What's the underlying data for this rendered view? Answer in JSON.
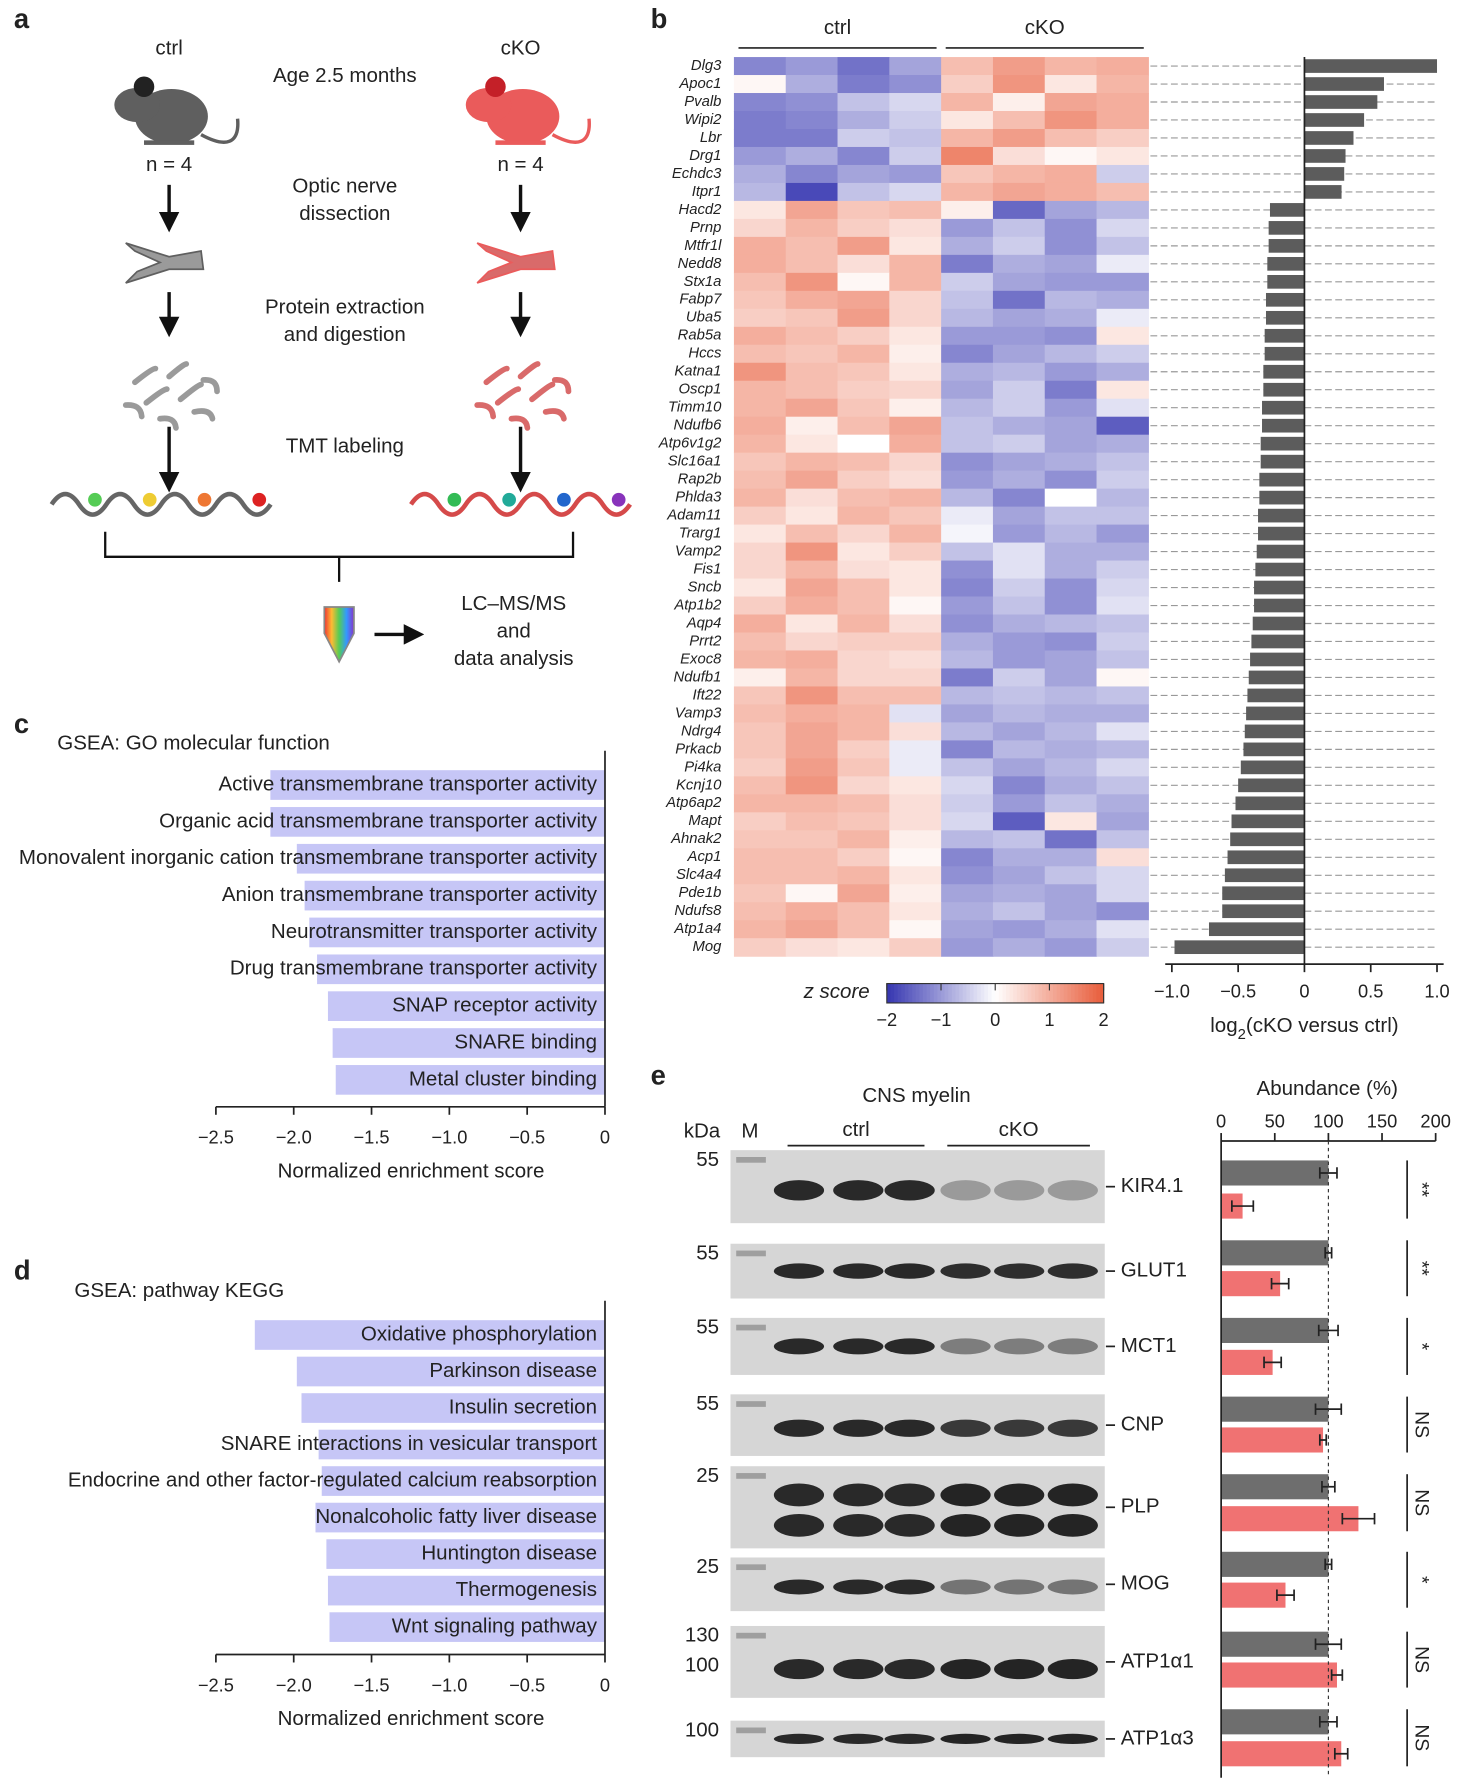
{
  "panel_labels": [
    "a",
    "b",
    "c",
    "d",
    "e"
  ],
  "diagram": {
    "groups": [
      {
        "label": "ctrl",
        "n": "n = 4"
      },
      {
        "label": "cKO",
        "n": "n = 4"
      }
    ],
    "steps": [
      [
        "Age 2.5 months"
      ],
      [
        "Optic nerve",
        "dissection"
      ],
      [
        "Protein extraction",
        "and digestion"
      ],
      [
        "TMT labeling"
      ]
    ],
    "output": [
      "LC–MS/MS",
      "and",
      "data analysis"
    ]
  },
  "chart_data": [
    {
      "type": "heatmap",
      "groups": [
        "ctrl",
        "cKO"
      ],
      "rows": [
        "Dlg3",
        "Apoc1",
        "Pvalb",
        "Wipi2",
        "Lbr",
        "Drg1",
        "Echdc3",
        "Itpr1",
        "Hacd2",
        "Prnp",
        "Mtfr1l",
        "Nedd8",
        "Stx1a",
        "Fabp7",
        "Uba5",
        "Rab5a",
        "Hccs",
        "Katna1",
        "Oscp1",
        "Timm10",
        "Ndufb6",
        "Atp6v1g2",
        "Slc16a1",
        "Rap2b",
        "Phlda3",
        "Adam11",
        "Trarg1",
        "Vamp2",
        "Fis1",
        "Sncb",
        "Atp1b2",
        "Aqp4",
        "Prrt2",
        "Exoc8",
        "Ndufb1",
        "Ift22",
        "Vamp3",
        "Ndrg4",
        "Prkacb",
        "Pi4ka",
        "Kcnj10",
        "Atp6ap2",
        "Mapt",
        "Ahnak2",
        "Acp1",
        "Slc4a4",
        "Pde1b",
        "Ndufs8",
        "Atp1a4",
        "Mog"
      ],
      "values": [
        [
          -1.2,
          -1.0,
          -1.4,
          -0.9,
          0.8,
          1.2,
          0.9,
          1.0
        ],
        [
          0.1,
          -0.8,
          -1.3,
          -1.1,
          0.6,
          1.3,
          0.3,
          0.9
        ],
        [
          -1.2,
          -1.1,
          -0.6,
          -0.4,
          0.9,
          0.2,
          1.1,
          1.0
        ],
        [
          -1.3,
          -1.2,
          -0.8,
          -0.5,
          0.3,
          0.8,
          1.3,
          1.0
        ],
        [
          -1.3,
          -1.3,
          -0.5,
          -0.6,
          0.9,
          1.2,
          0.8,
          0.6
        ],
        [
          -1.0,
          -0.8,
          -1.2,
          -0.5,
          1.5,
          0.4,
          0.1,
          0.3
        ],
        [
          -0.8,
          -1.2,
          -0.9,
          -1.0,
          0.7,
          0.9,
          1.0,
          -0.5
        ],
        [
          -0.7,
          -1.8,
          -0.6,
          -0.4,
          0.9,
          1.1,
          1.0,
          0.8
        ],
        [
          0.3,
          1.1,
          0.7,
          0.8,
          0.2,
          -1.5,
          -0.9,
          -0.7
        ],
        [
          0.5,
          0.9,
          0.6,
          0.4,
          -1.0,
          -0.6,
          -1.1,
          -0.4
        ],
        [
          1.0,
          0.8,
          1.2,
          0.3,
          -0.8,
          -0.5,
          -1.1,
          -0.6
        ],
        [
          1.0,
          0.8,
          0.4,
          0.9,
          -1.3,
          -0.8,
          -0.9,
          -0.2
        ],
        [
          0.8,
          1.3,
          0.1,
          0.9,
          -0.5,
          -0.9,
          -1.0,
          -1.0
        ],
        [
          0.7,
          1.0,
          1.1,
          0.5,
          -0.6,
          -1.4,
          -0.7,
          -0.8
        ],
        [
          0.6,
          0.7,
          1.2,
          0.5,
          -0.7,
          -0.9,
          -0.8,
          -0.2
        ],
        [
          1.0,
          0.8,
          0.6,
          0.3,
          -1.0,
          -1.0,
          -1.1,
          0.3
        ],
        [
          0.8,
          0.7,
          0.9,
          0.2,
          -1.2,
          -0.9,
          -0.7,
          -0.5
        ],
        [
          1.3,
          0.8,
          0.7,
          0.3,
          -0.8,
          -0.7,
          -1.0,
          -0.8
        ],
        [
          0.9,
          0.8,
          0.6,
          0.5,
          -0.9,
          -0.5,
          -1.3,
          0.3
        ],
        [
          0.9,
          1.1,
          0.7,
          0.2,
          -0.7,
          -0.5,
          -1.0,
          -0.3
        ],
        [
          1.0,
          0.2,
          0.8,
          1.1,
          -0.6,
          -0.8,
          -0.9,
          -1.6
        ],
        [
          0.9,
          0.3,
          0.0,
          1.0,
          -0.6,
          -0.5,
          -0.9,
          -0.8
        ],
        [
          0.7,
          0.9,
          0.8,
          0.5,
          -1.1,
          -0.9,
          -0.8,
          -0.6
        ],
        [
          0.8,
          1.1,
          0.6,
          0.4,
          -1.0,
          -0.8,
          -1.1,
          -0.5
        ],
        [
          0.9,
          0.4,
          0.8,
          0.9,
          -0.7,
          -1.2,
          0.0,
          -0.7
        ],
        [
          0.6,
          0.3,
          0.9,
          0.7,
          -0.2,
          -0.9,
          -0.6,
          -0.6
        ],
        [
          0.3,
          0.8,
          0.5,
          0.9,
          -0.1,
          -1.0,
          -0.7,
          -1.0
        ],
        [
          0.5,
          1.3,
          0.3,
          0.6,
          -0.6,
          -0.3,
          -0.8,
          -0.8
        ],
        [
          0.5,
          0.9,
          0.4,
          0.3,
          -1.1,
          -0.3,
          -0.8,
          -0.5
        ],
        [
          0.3,
          1.1,
          0.8,
          0.3,
          -1.2,
          -0.5,
          -1.1,
          -0.4
        ],
        [
          0.6,
          1.0,
          0.8,
          0.1,
          -1.0,
          -0.6,
          -1.1,
          -0.3
        ],
        [
          1.0,
          0.3,
          0.9,
          0.4,
          -1.1,
          -0.8,
          -0.7,
          -0.6
        ],
        [
          0.8,
          0.5,
          0.6,
          0.6,
          -0.8,
          -1.0,
          -1.1,
          -0.5
        ],
        [
          0.9,
          1.0,
          0.5,
          0.4,
          -0.7,
          -1.0,
          -0.9,
          -0.6
        ],
        [
          0.2,
          0.9,
          0.5,
          0.5,
          -1.3,
          -0.5,
          -0.9,
          0.1
        ],
        [
          0.7,
          1.3,
          0.8,
          0.8,
          -0.7,
          -0.6,
          -0.7,
          -0.6
        ],
        [
          0.8,
          1.0,
          0.9,
          -0.3,
          -0.9,
          -0.7,
          -0.8,
          -0.8
        ],
        [
          0.7,
          1.1,
          0.9,
          0.4,
          -0.7,
          -0.9,
          -0.7,
          -0.3
        ],
        [
          0.7,
          1.1,
          0.6,
          -0.2,
          -1.2,
          -0.7,
          -0.8,
          -0.7
        ],
        [
          0.6,
          1.2,
          0.7,
          -0.2,
          -0.6,
          -0.9,
          -0.7,
          -0.4
        ],
        [
          0.8,
          1.3,
          0.5,
          0.3,
          -0.4,
          -1.2,
          -0.8,
          -0.6
        ],
        [
          0.9,
          0.9,
          0.8,
          0.4,
          -0.5,
          -1.0,
          -0.6,
          -0.8
        ],
        [
          0.6,
          0.8,
          0.7,
          0.4,
          -0.4,
          -1.6,
          0.3,
          -0.9
        ],
        [
          0.7,
          0.7,
          0.9,
          0.2,
          -0.7,
          -0.6,
          -1.4,
          -0.6
        ],
        [
          0.8,
          0.8,
          0.6,
          0.1,
          -1.2,
          -0.8,
          -0.8,
          0.4
        ],
        [
          0.8,
          0.8,
          0.9,
          0.3,
          -1.1,
          -0.9,
          -0.6,
          -0.4
        ],
        [
          0.7,
          0.1,
          1.1,
          0.2,
          -0.9,
          -0.8,
          -0.9,
          -0.4
        ],
        [
          0.8,
          1.0,
          0.8,
          0.3,
          -0.8,
          -0.6,
          -0.9,
          -1.1
        ],
        [
          0.9,
          1.1,
          0.8,
          0.1,
          -0.9,
          -1.0,
          -0.8,
          -0.3
        ],
        [
          0.6,
          0.4,
          0.3,
          0.6,
          -1.0,
          -0.8,
          -1.0,
          -0.5
        ]
      ],
      "colorbar": {
        "label": "z score",
        "lim": [
          -2,
          2
        ],
        "colors": [
          "#3535b0",
          "#ffffff",
          "#e85c3a"
        ],
        "ticks": [
          {
            "value": -2,
            "label": "−2"
          },
          {
            "value": -1,
            "label": "−1"
          },
          0,
          1,
          2
        ]
      },
      "bar_values": [
        1.0,
        0.6,
        0.55,
        0.45,
        0.37,
        0.31,
        0.3,
        0.28,
        -0.26,
        -0.27,
        -0.27,
        -0.28,
        -0.28,
        -0.29,
        -0.29,
        -0.3,
        -0.3,
        -0.31,
        -0.31,
        -0.32,
        -0.32,
        -0.33,
        -0.33,
        -0.34,
        -0.34,
        -0.35,
        -0.35,
        -0.36,
        -0.37,
        -0.38,
        -0.38,
        -0.39,
        -0.4,
        -0.41,
        -0.42,
        -0.43,
        -0.44,
        -0.45,
        -0.46,
        -0.48,
        -0.5,
        -0.52,
        -0.55,
        -0.56,
        -0.58,
        -0.6,
        -0.62,
        -0.62,
        -0.72,
        -0.98
      ],
      "bar_color": "#5c5c5c",
      "bar_xlim": [
        -1.05,
        1.05
      ],
      "bar_xticks": [
        {
          "value": -1.0,
          "label": "−1.0"
        },
        {
          "value": -0.5,
          "label": "−0.5"
        },
        0,
        0.5,
        {
          "value": 1.0,
          "label": "1.0"
        }
      ],
      "bar_xlabel": [
        "log",
        "2",
        "(cKO versus ctrl)"
      ]
    },
    {
      "type": "hbar",
      "title": "GSEA: GO molecular function",
      "categories": [
        "Active transmembrane transporter activity",
        "Organic acid transmembrane transporter activity",
        "Monovalent inorganic cation transmembrane transporter activity",
        "Anion transmembrane transporter activity",
        "Neurotransmitter transporter activity",
        "Drug transmembrane transporter activity",
        "SNAP receptor activity",
        "SNARE binding",
        "Metal cluster binding"
      ],
      "values": [
        -2.15,
        -2.15,
        -1.98,
        -1.93,
        -1.9,
        -1.85,
        -1.78,
        -1.75,
        -1.73
      ],
      "color": "#c6c6f6",
      "xlim": [
        -2.5,
        0
      ],
      "xticks": [
        {
          "value": -2.5,
          "label": "−2.5"
        },
        {
          "value": -2.0,
          "label": "−2.0"
        },
        {
          "value": -1.5,
          "label": "−1.5"
        },
        {
          "value": -1.0,
          "label": "−1.0"
        },
        {
          "value": -0.5,
          "label": "−0.5"
        },
        0
      ],
      "xlabel": "Normalized enrichment score"
    },
    {
      "type": "hbar",
      "title": "GSEA: pathway KEGG",
      "categories": [
        "Oxidative phosphorylation",
        "Parkinson disease",
        "Insulin secretion",
        "SNARE interactions in vesicular transport",
        "Endocrine and other factor-regulated calcium reabsorption",
        "Nonalcoholic fatty liver disease",
        "Huntington disease",
        "Thermogenesis",
        "Wnt signaling pathway"
      ],
      "values": [
        -2.25,
        -1.98,
        -1.95,
        -1.84,
        -1.82,
        -1.86,
        -1.79,
        -1.78,
        -1.77
      ],
      "color": "#c6c6f6",
      "xlim": [
        -2.5,
        0
      ],
      "xticks": [
        {
          "value": -2.5,
          "label": "−2.5"
        },
        {
          "value": -2.0,
          "label": "−2.0"
        },
        {
          "value": -1.5,
          "label": "−1.5"
        },
        {
          "value": -1.0,
          "label": "−1.0"
        },
        {
          "value": -0.5,
          "label": "−0.5"
        },
        0
      ],
      "xlabel": "Normalized enrichment score"
    },
    {
      "type": "blotbar",
      "blot_title": "CNS myelin",
      "kda": "kDa",
      "marker_lane": "M",
      "title": "Abundance (%)",
      "categories": [
        "KIR4.1",
        "GLUT1",
        "MCT1",
        "CNP",
        "PLP",
        "MOG",
        "ATP1α1",
        "ATP1α3"
      ],
      "markers": [
        [
          "55"
        ],
        [
          "55"
        ],
        [
          "55"
        ],
        [
          "55"
        ],
        [
          "25"
        ],
        [
          "25"
        ],
        [
          "130",
          "100"
        ],
        [
          "100"
        ]
      ],
      "series": [
        {
          "name": "ctrl",
          "color": "#6e6e6e",
          "values": [
            100,
            100,
            100,
            100,
            100,
            100,
            100,
            100
          ],
          "errors": [
            8,
            3,
            9,
            12,
            6,
            3,
            12,
            8
          ]
        },
        {
          "name": "cKO",
          "color": "#f07272",
          "values": [
            20,
            55,
            48,
            95,
            128,
            60,
            108,
            112
          ],
          "errors": [
            10,
            8,
            8,
            3,
            15,
            8,
            5,
            6
          ]
        }
      ],
      "significance": [
        "**",
        "**",
        "*",
        "NS",
        "NS",
        "*",
        "NS",
        "NS"
      ],
      "xlim": [
        0,
        200
      ],
      "xticks": [
        0,
        50,
        100,
        150,
        200
      ]
    }
  ]
}
